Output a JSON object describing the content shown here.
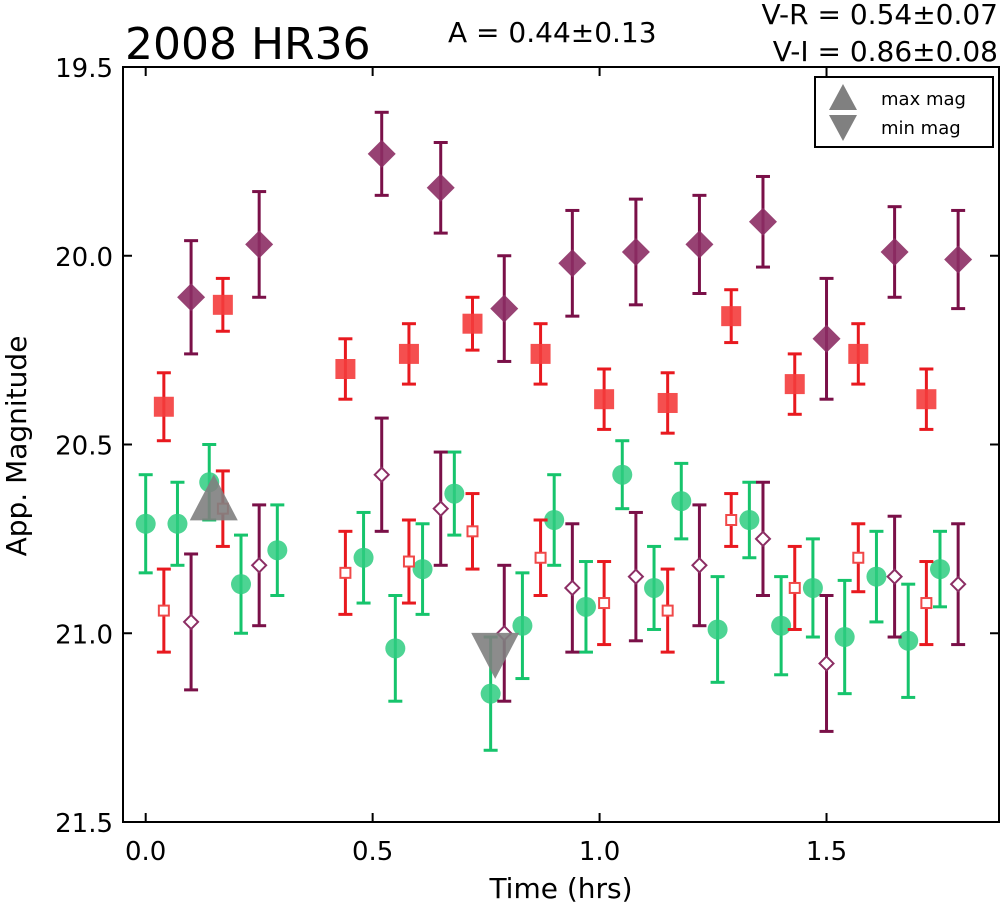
{
  "header": {
    "title": "2008 HR36",
    "amplitude": "A  = 0.44±0.13",
    "color_vr": "V-R = 0.54±0.07",
    "color_vi": "V-I  = 0.86±0.08"
  },
  "chart_data": {
    "type": "scatter",
    "title": "2008 HR36",
    "xlabel": "Time (hrs)",
    "ylabel": "App. Magnitude",
    "xlim": [
      -0.05,
      1.88
    ],
    "ylim": [
      21.5,
      19.5
    ],
    "y_inverted": true,
    "xticks": [
      "0.0",
      "0.5",
      "1.0",
      "1.5"
    ],
    "xtick_values": [
      0.0,
      0.5,
      1.0,
      1.5
    ],
    "yticks": [
      "19.5",
      "20.0",
      "20.5",
      "21.0",
      "21.5"
    ],
    "ytick_values": [
      19.5,
      20.0,
      20.5,
      21.0,
      21.5
    ],
    "grid": false,
    "legend": {
      "placement": "top-right",
      "entries": [
        {
          "label": "max mag",
          "marker": "triangle-up",
          "color": "#808080"
        },
        {
          "label": "min mag",
          "marker": "triangle-down",
          "color": "#808080"
        }
      ]
    },
    "series": [
      {
        "marker": "diamond",
        "filled": true,
        "color": "#8c2e64",
        "err_color": "#7a1048",
        "points": [
          {
            "x": 0.1,
            "y": 20.11,
            "err": 0.15
          },
          {
            "x": 0.25,
            "y": 19.97,
            "err": 0.14
          },
          {
            "x": 0.52,
            "y": 19.73,
            "err": 0.11
          },
          {
            "x": 0.65,
            "y": 19.82,
            "err": 0.12
          },
          {
            "x": 0.79,
            "y": 20.14,
            "err": 0.14
          },
          {
            "x": 0.94,
            "y": 20.02,
            "err": 0.14
          },
          {
            "x": 1.08,
            "y": 19.99,
            "err": 0.14
          },
          {
            "x": 1.22,
            "y": 19.97,
            "err": 0.13
          },
          {
            "x": 1.36,
            "y": 19.91,
            "err": 0.12
          },
          {
            "x": 1.5,
            "y": 20.22,
            "err": 0.16
          },
          {
            "x": 1.65,
            "y": 19.99,
            "err": 0.12
          },
          {
            "x": 1.79,
            "y": 20.01,
            "err": 0.13
          }
        ]
      },
      {
        "marker": "square",
        "filled": true,
        "color": "#f43c3c",
        "err_color": "#e8191f",
        "points": [
          {
            "x": 0.04,
            "y": 20.4,
            "err": 0.09
          },
          {
            "x": 0.17,
            "y": 20.13,
            "err": 0.07
          },
          {
            "x": 0.44,
            "y": 20.3,
            "err": 0.08
          },
          {
            "x": 0.58,
            "y": 20.26,
            "err": 0.08
          },
          {
            "x": 0.72,
            "y": 20.18,
            "err": 0.07
          },
          {
            "x": 0.87,
            "y": 20.26,
            "err": 0.08
          },
          {
            "x": 1.01,
            "y": 20.38,
            "err": 0.08
          },
          {
            "x": 1.15,
            "y": 20.39,
            "err": 0.08
          },
          {
            "x": 1.29,
            "y": 20.16,
            "err": 0.07
          },
          {
            "x": 1.43,
            "y": 20.34,
            "err": 0.08
          },
          {
            "x": 1.57,
            "y": 20.26,
            "err": 0.08
          },
          {
            "x": 1.72,
            "y": 20.38,
            "err": 0.08
          }
        ]
      },
      {
        "marker": "circle",
        "filled": true,
        "color": "#2ecc80",
        "err_color": "#16c46c",
        "points": [
          {
            "x": 0.0,
            "y": 20.71,
            "err": 0.13
          },
          {
            "x": 0.07,
            "y": 20.71,
            "err": 0.11
          },
          {
            "x": 0.14,
            "y": 20.6,
            "err": 0.1
          },
          {
            "x": 0.21,
            "y": 20.87,
            "err": 0.13
          },
          {
            "x": 0.29,
            "y": 20.78,
            "err": 0.12
          },
          {
            "x": 0.48,
            "y": 20.8,
            "err": 0.12
          },
          {
            "x": 0.55,
            "y": 21.04,
            "err": 0.14
          },
          {
            "x": 0.61,
            "y": 20.83,
            "err": 0.12
          },
          {
            "x": 0.68,
            "y": 20.63,
            "err": 0.11
          },
          {
            "x": 0.76,
            "y": 21.16,
            "err": 0.15
          },
          {
            "x": 0.83,
            "y": 20.98,
            "err": 0.14
          },
          {
            "x": 0.9,
            "y": 20.7,
            "err": 0.12
          },
          {
            "x": 0.97,
            "y": 20.93,
            "err": 0.12
          },
          {
            "x": 1.05,
            "y": 20.58,
            "err": 0.09
          },
          {
            "x": 1.12,
            "y": 20.88,
            "err": 0.11
          },
          {
            "x": 1.18,
            "y": 20.65,
            "err": 0.1
          },
          {
            "x": 1.26,
            "y": 20.99,
            "err": 0.14
          },
          {
            "x": 1.33,
            "y": 20.7,
            "err": 0.1
          },
          {
            "x": 1.4,
            "y": 20.98,
            "err": 0.13
          },
          {
            "x": 1.47,
            "y": 20.88,
            "err": 0.13
          },
          {
            "x": 1.54,
            "y": 21.01,
            "err": 0.15
          },
          {
            "x": 1.61,
            "y": 20.85,
            "err": 0.12
          },
          {
            "x": 1.68,
            "y": 21.02,
            "err": 0.15
          },
          {
            "x": 1.75,
            "y": 20.83,
            "err": 0.1
          }
        ]
      },
      {
        "marker": "square",
        "filled": false,
        "color": "#f04848",
        "err_color": "#e8191f",
        "points": [
          {
            "x": 0.04,
            "y": 20.94,
            "err": 0.11
          },
          {
            "x": 0.17,
            "y": 20.67,
            "err": 0.1
          },
          {
            "x": 0.44,
            "y": 20.84,
            "err": 0.11
          },
          {
            "x": 0.58,
            "y": 20.81,
            "err": 0.11
          },
          {
            "x": 0.72,
            "y": 20.73,
            "err": 0.1
          },
          {
            "x": 0.87,
            "y": 20.8,
            "err": 0.1
          },
          {
            "x": 1.01,
            "y": 20.92,
            "err": 0.11
          },
          {
            "x": 1.15,
            "y": 20.94,
            "err": 0.11
          },
          {
            "x": 1.29,
            "y": 20.7,
            "err": 0.07
          },
          {
            "x": 1.43,
            "y": 20.88,
            "err": 0.11
          },
          {
            "x": 1.57,
            "y": 20.8,
            "err": 0.09
          },
          {
            "x": 1.72,
            "y": 20.92,
            "err": 0.11
          }
        ]
      },
      {
        "marker": "diamond",
        "filled": false,
        "color": "#8c2e64",
        "err_color": "#7a1048",
        "points": [
          {
            "x": 0.1,
            "y": 20.97,
            "err": 0.18
          },
          {
            "x": 0.25,
            "y": 20.82,
            "err": 0.16
          },
          {
            "x": 0.52,
            "y": 20.58,
            "err": 0.15
          },
          {
            "x": 0.65,
            "y": 20.67,
            "err": 0.15
          },
          {
            "x": 0.79,
            "y": 21.0,
            "err": 0.18
          },
          {
            "x": 0.94,
            "y": 20.88,
            "err": 0.17
          },
          {
            "x": 1.08,
            "y": 20.85,
            "err": 0.17
          },
          {
            "x": 1.22,
            "y": 20.82,
            "err": 0.16
          },
          {
            "x": 1.36,
            "y": 20.75,
            "err": 0.15
          },
          {
            "x": 1.5,
            "y": 21.08,
            "err": 0.18
          },
          {
            "x": 1.65,
            "y": 20.85,
            "err": 0.16
          },
          {
            "x": 1.79,
            "y": 20.87,
            "err": 0.16
          }
        ]
      }
    ],
    "extrema": [
      {
        "label": "max mag",
        "x": 0.15,
        "y": 20.64,
        "marker": "triangle-up",
        "color": "#808080"
      },
      {
        "label": "min mag",
        "x": 0.77,
        "y": 21.06,
        "marker": "triangle-down",
        "color": "#808080"
      }
    ]
  }
}
